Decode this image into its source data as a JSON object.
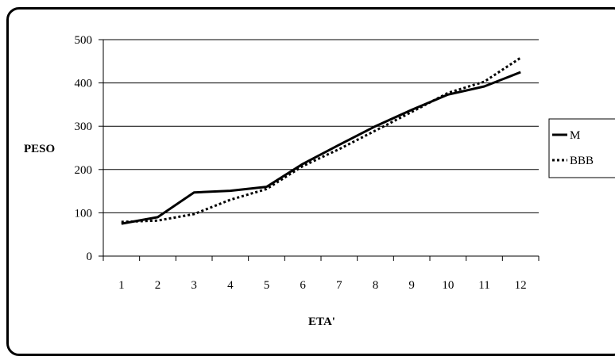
{
  "chart_data": {
    "type": "line",
    "title": "",
    "xlabel": "ETA'",
    "ylabel": "PESO",
    "categories": [
      "1",
      "2",
      "3",
      "4",
      "5",
      "6",
      "7",
      "8",
      "9",
      "10",
      "11",
      "12"
    ],
    "ylim": [
      0,
      500
    ],
    "yticks": [
      "0",
      "100",
      "200",
      "300",
      "400",
      "500"
    ],
    "grid": "horizontal",
    "legend_position": "right",
    "series": [
      {
        "name": "M",
        "style": "solid",
        "color": "#000000",
        "values": [
          75,
          90,
          147,
          151,
          160,
          213,
          257,
          300,
          338,
          373,
          392,
          425
        ]
      },
      {
        "name": "BBB",
        "style": "dotted",
        "color": "#000000",
        "values": [
          79,
          82,
          97,
          130,
          155,
          208,
          247,
          290,
          333,
          377,
          403,
          458
        ]
      }
    ]
  }
}
